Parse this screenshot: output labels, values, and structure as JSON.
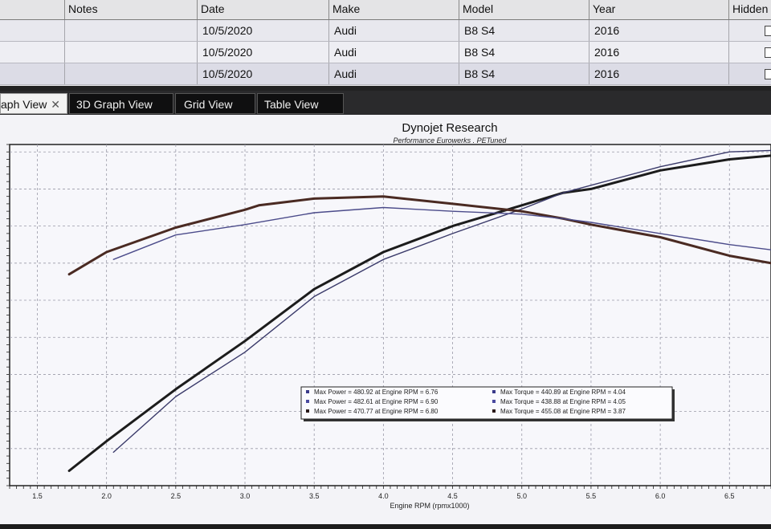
{
  "table": {
    "columns": [
      "Notes",
      "Date",
      "Make",
      "Model",
      "Year",
      "Hidden"
    ],
    "rows": [
      {
        "notes": "",
        "date": "10/5/2020",
        "make": "Audi",
        "model": "B8 S4",
        "year": "2016"
      },
      {
        "notes": "",
        "date": "10/5/2020",
        "make": "Audi",
        "model": "B8 S4",
        "year": "2016"
      },
      {
        "notes": "",
        "date": "10/5/2020",
        "make": "Audi",
        "model": "B8 S4",
        "year": "2016"
      }
    ]
  },
  "tabs": [
    {
      "label": "aph View",
      "active": true,
      "close": "✕"
    },
    {
      "label": "3D Graph View",
      "active": false
    },
    {
      "label": "Grid View",
      "active": false
    },
    {
      "label": "Table View",
      "active": false
    }
  ],
  "chart_data": {
    "type": "line",
    "title": "Dynojet Research",
    "subtitle": "Performance Eurowerks . PETuned",
    "xlabel": "Engine RPM (rpmx1000)",
    "ylabel": "",
    "xlim": [
      1.3,
      6.8
    ],
    "ylim": [
      0,
      460
    ],
    "x_ticks": [
      "1.5",
      "2.0",
      "2.5",
      "3.0",
      "3.5",
      "4.0",
      "4.5",
      "5.0",
      "5.5",
      "6.0",
      "6.5"
    ],
    "grid": true,
    "series": [
      {
        "kind": "power",
        "color": "#1c1c1c",
        "points": [
          [
            1.73,
            20
          ],
          [
            2.0,
            60
          ],
          [
            2.5,
            130
          ],
          [
            3.0,
            195
          ],
          [
            3.5,
            265
          ],
          [
            4.0,
            315
          ],
          [
            4.5,
            350
          ],
          [
            5.0,
            378
          ],
          [
            5.3,
            395
          ],
          [
            5.5,
            400
          ],
          [
            6.0,
            425
          ],
          [
            6.5,
            440
          ],
          [
            6.8,
            445
          ]
        ]
      },
      {
        "kind": "power",
        "color": "#3a3a6a",
        "points": [
          [
            2.05,
            45
          ],
          [
            2.5,
            120
          ],
          [
            3.0,
            180
          ],
          [
            3.5,
            255
          ],
          [
            4.0,
            305
          ],
          [
            4.5,
            340
          ],
          [
            5.0,
            373
          ],
          [
            5.3,
            395
          ],
          [
            5.5,
            405
          ],
          [
            6.0,
            430
          ],
          [
            6.5,
            450
          ],
          [
            6.8,
            452
          ]
        ]
      },
      {
        "kind": "torque",
        "color": "#4a2a22",
        "points": [
          [
            1.73,
            285
          ],
          [
            2.0,
            315
          ],
          [
            2.5,
            348
          ],
          [
            3.0,
            372
          ],
          [
            3.1,
            378
          ],
          [
            3.5,
            387
          ],
          [
            4.0,
            390
          ],
          [
            4.5,
            380
          ],
          [
            5.0,
            370
          ],
          [
            5.3,
            360
          ],
          [
            5.5,
            352
          ],
          [
            6.0,
            335
          ],
          [
            6.5,
            310
          ],
          [
            6.8,
            300
          ]
        ]
      },
      {
        "kind": "torque",
        "color": "#4b4b8a",
        "points": [
          [
            2.05,
            305
          ],
          [
            2.5,
            338
          ],
          [
            3.0,
            352
          ],
          [
            3.5,
            368
          ],
          [
            4.0,
            375
          ],
          [
            4.5,
            370
          ],
          [
            5.0,
            366
          ],
          [
            5.3,
            360
          ],
          [
            5.5,
            355
          ],
          [
            6.0,
            340
          ],
          [
            6.5,
            325
          ],
          [
            6.8,
            318
          ]
        ]
      }
    ],
    "legend": {
      "position": "lower-right",
      "entries": [
        {
          "color": "#3a3a8a",
          "power": "Max Power = 480.92 at Engine RPM = 6.76",
          "torque": "Max Torque = 440.89 at Engine RPM = 4.04"
        },
        {
          "color": "#4a4aa0",
          "power": "Max Power = 482.61 at Engine RPM = 6.90",
          "torque": "Max Torque = 438.88 at Engine RPM = 4.05"
        },
        {
          "color": "#2a1a1a",
          "power": "Max Power = 470.77 at Engine RPM = 6.80",
          "torque": "Max Torque = 455.08 at Engine RPM = 3.87"
        }
      ]
    }
  }
}
